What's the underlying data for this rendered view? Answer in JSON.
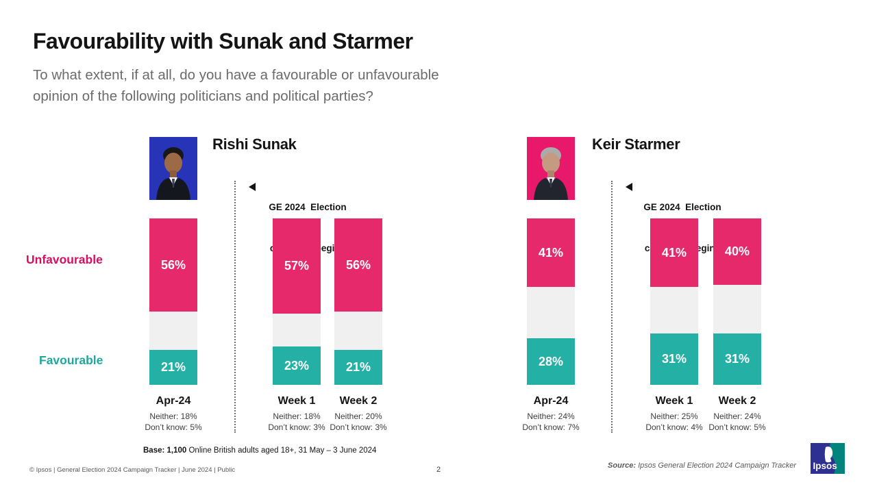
{
  "slide": {
    "title": "Favourability with Sunak and Starmer",
    "subtitle_line1": "To what extent, if at all, do you have a favourable or unfavourable",
    "subtitle_line2": "opinion of the following politicians and political parties?",
    "page_number": "2",
    "footer_left": "© Ipsos | General Election 2024 Campaign Tracker | June 2024 | Public",
    "base_bold": "Base: 1,100",
    "base_rest": " Online British adults aged 18+, 31 May – 3 June 2024",
    "source_label": "Source:",
    "source_rest": " Ipsos General Election 2024 Campaign Tracker"
  },
  "axis_labels": {
    "unfavourable": "Unfavourable",
    "favourable": "Favourable"
  },
  "annotation": {
    "line1": "GE 2024  Election",
    "line2": "campaign begins"
  },
  "colors": {
    "unfavourable": "#E6296B",
    "favourable": "#25B0A5",
    "neither_segment": "#F0F0F0",
    "unfavourable_label": "#D60F62",
    "favourable_label": "#1FA79D",
    "sunak_photo_bg": "#2734B8",
    "starmer_photo_bg": "#E8196B",
    "logo_blue": "#2E3192",
    "logo_teal": "#00847D"
  },
  "logo": {
    "text": "Ipsos"
  },
  "chart_data": [
    {
      "type": "bar",
      "stacked": true,
      "title": "Rishi Sunak",
      "categories": [
        "Apr-24",
        "Week 1",
        "Week 2"
      ],
      "series": [
        {
          "name": "Unfavourable",
          "color": "#E6296B",
          "values": [
            56,
            57,
            56
          ]
        },
        {
          "name": "Favourable",
          "color": "#25B0A5",
          "values": [
            21,
            23,
            21
          ]
        }
      ],
      "neither": [
        18,
        18,
        20
      ],
      "dont_know": [
        5,
        3,
        3
      ],
      "neither_prefix": "Neither: ",
      "dont_know_prefix": "Don’t know: ",
      "annotation": "GE 2024 Election campaign begins",
      "ylim": [
        0,
        100
      ],
      "legend_position": "left",
      "grid": false
    },
    {
      "type": "bar",
      "stacked": true,
      "title": "Keir Starmer",
      "categories": [
        "Apr-24",
        "Week 1",
        "Week 2"
      ],
      "series": [
        {
          "name": "Unfavourable",
          "color": "#E6296B",
          "values": [
            41,
            41,
            40
          ]
        },
        {
          "name": "Favourable",
          "color": "#25B0A5",
          "values": [
            28,
            31,
            31
          ]
        }
      ],
      "neither": [
        24,
        25,
        24
      ],
      "dont_know": [
        7,
        4,
        5
      ],
      "neither_prefix": "Neither: ",
      "dont_know_prefix": "Don’t know: ",
      "annotation": "GE 2024 Election campaign begins",
      "ylim": [
        0,
        100
      ],
      "legend_position": "left",
      "grid": false
    }
  ]
}
